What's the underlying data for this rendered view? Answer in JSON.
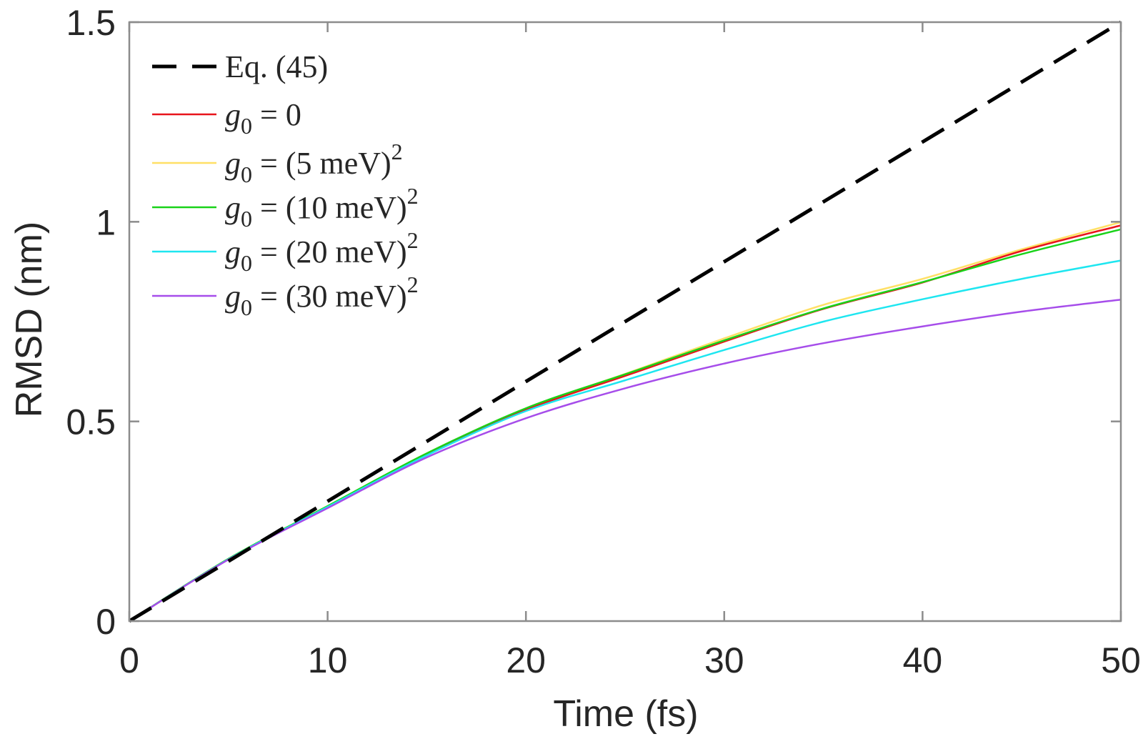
{
  "chart_data": {
    "type": "line",
    "title": "",
    "xlabel": "Time (fs)",
    "ylabel": "RMSD (nm)",
    "xlim": [
      0,
      50
    ],
    "ylim": [
      0,
      1.5
    ],
    "grid": false,
    "box": true,
    "legend_position": "top-left",
    "x_ticks": [
      0,
      10,
      20,
      30,
      40,
      50
    ],
    "x_tick_labels": [
      "0",
      "10",
      "20",
      "30",
      "40",
      "50"
    ],
    "y_ticks": [
      0,
      0.5,
      1,
      1.5
    ],
    "y_tick_labels": [
      "0",
      "0.5",
      "1",
      "1.5"
    ],
    "x": [
      0,
      5,
      10,
      15,
      20,
      25,
      30,
      35,
      40,
      45,
      50
    ],
    "series": [
      {
        "name": "Eq. (45)",
        "legend": {
          "prefix": "Eq. (45)",
          "italic": "",
          "rest": "",
          "sup": ""
        },
        "color": "#000000",
        "style": "dashed",
        "values": [
          0,
          0.15,
          0.3,
          0.45,
          0.6,
          0.75,
          0.9,
          1.05,
          1.2,
          1.35,
          1.5
        ]
      },
      {
        "name": "g0 = 0",
        "legend": {
          "prefix": "",
          "italic": "g",
          "sub": "0",
          "rest": " = 0",
          "sup": ""
        },
        "color": "#e8141b",
        "style": "solid",
        "values": [
          0,
          0.155,
          0.287,
          0.418,
          0.529,
          0.614,
          0.7,
          0.782,
          0.848,
          0.927,
          0.991
        ]
      },
      {
        "name": "g0 = (5 meV)^2",
        "legend": {
          "prefix": "",
          "italic": "g",
          "sub": "0",
          "rest": " = (5 meV)",
          "sup": "2"
        },
        "color": "#ffe066",
        "style": "solid",
        "values": [
          0,
          0.156,
          0.288,
          0.42,
          0.533,
          0.619,
          0.708,
          0.792,
          0.857,
          0.931,
          0.999
        ]
      },
      {
        "name": "g0 = (10 meV)^2",
        "legend": {
          "prefix": "",
          "italic": "g",
          "sub": "0",
          "rest": " = (10 meV)",
          "sup": "2"
        },
        "color": "#19d219",
        "style": "solid",
        "values": [
          0,
          0.156,
          0.288,
          0.42,
          0.533,
          0.618,
          0.703,
          0.783,
          0.849,
          0.919,
          0.981
        ]
      },
      {
        "name": "g0 = (20 meV)^2",
        "legend": {
          "prefix": "",
          "italic": "g",
          "sub": "0",
          "rest": " = (20 meV)",
          "sup": "2"
        },
        "color": "#1ee6f0",
        "style": "solid",
        "values": [
          0,
          0.155,
          0.286,
          0.415,
          0.526,
          0.603,
          0.679,
          0.75,
          0.806,
          0.857,
          0.903
        ]
      },
      {
        "name": "g0 = (30 meV)^2",
        "legend": {
          "prefix": "",
          "italic": "g",
          "sub": "0",
          "rest": " = (30 meV)",
          "sup": "2"
        },
        "color": "#a64dea",
        "style": "solid",
        "values": [
          0,
          0.154,
          0.283,
          0.41,
          0.508,
          0.583,
          0.645,
          0.696,
          0.738,
          0.775,
          0.805
        ]
      }
    ]
  },
  "colors": {
    "axis": "#8c8c8c",
    "text": "#262626",
    "background": "#ffffff"
  }
}
